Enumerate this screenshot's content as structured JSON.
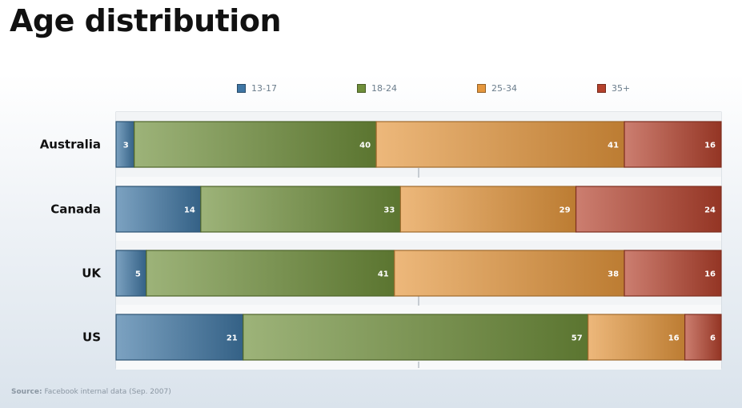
{
  "title": "Age distribution",
  "source": {
    "label": "Source:",
    "text": "Facebook internal data (Sep. 2007)"
  },
  "chart_data": {
    "type": "bar",
    "orientation": "horizontal",
    "stacked": true,
    "title": "Age distribution",
    "categories": [
      "Australia",
      "Canada",
      "UK",
      "US"
    ],
    "series": [
      {
        "name": "13-17",
        "color": "#3f76a4",
        "values": [
          3,
          14,
          5,
          21
        ]
      },
      {
        "name": "18-24",
        "color": "#6f8f3a",
        "values": [
          40,
          33,
          41,
          57
        ]
      },
      {
        "name": "25-34",
        "color": "#e5973d",
        "values": [
          41,
          29,
          38,
          16
        ]
      },
      {
        "name": "35+",
        "color": "#b4412c",
        "values": [
          16,
          24,
          16,
          6
        ]
      }
    ],
    "xlim": [
      0,
      100
    ],
    "legend_position": "top",
    "data_labels": true,
    "grid": true
  }
}
